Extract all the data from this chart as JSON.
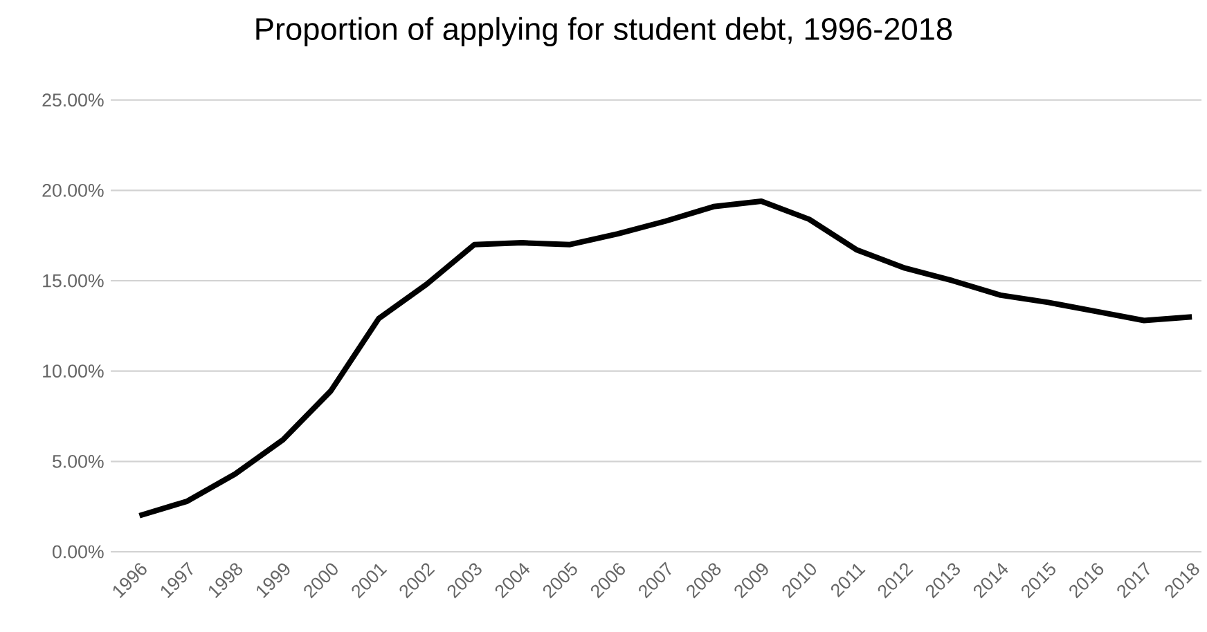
{
  "chart_data": {
    "type": "line",
    "title": "Proportion of applying for student debt, 1996-2018",
    "categories": [
      "1996",
      "1997",
      "1998",
      "1999",
      "2000",
      "2001",
      "2002",
      "2003",
      "2004",
      "2005",
      "2006",
      "2007",
      "2008",
      "2009",
      "2010",
      "2011",
      "2012",
      "2013",
      "2014",
      "2015",
      "2016",
      "2017",
      "2018"
    ],
    "series": [
      {
        "color": "#000000",
        "values": [
          2.0,
          2.8,
          4.3,
          6.2,
          8.9,
          12.9,
          14.8,
          17.0,
          17.1,
          17.0,
          17.6,
          18.3,
          19.1,
          19.4,
          18.4,
          16.7,
          15.7,
          15.0,
          14.2,
          13.8,
          13.3,
          12.8,
          13.0
        ]
      }
    ],
    "ylim": [
      0,
      25
    ],
    "yticks": [
      {
        "value": 0,
        "label": "0.00%"
      },
      {
        "value": 5,
        "label": "5.00%"
      },
      {
        "value": 10,
        "label": "10.00%"
      },
      {
        "value": 15,
        "label": "15.00%"
      },
      {
        "value": 20,
        "label": "20.00%"
      },
      {
        "value": 25,
        "label": "25.00%"
      }
    ],
    "grid": "y",
    "marker": "none",
    "line_style": "solid"
  }
}
